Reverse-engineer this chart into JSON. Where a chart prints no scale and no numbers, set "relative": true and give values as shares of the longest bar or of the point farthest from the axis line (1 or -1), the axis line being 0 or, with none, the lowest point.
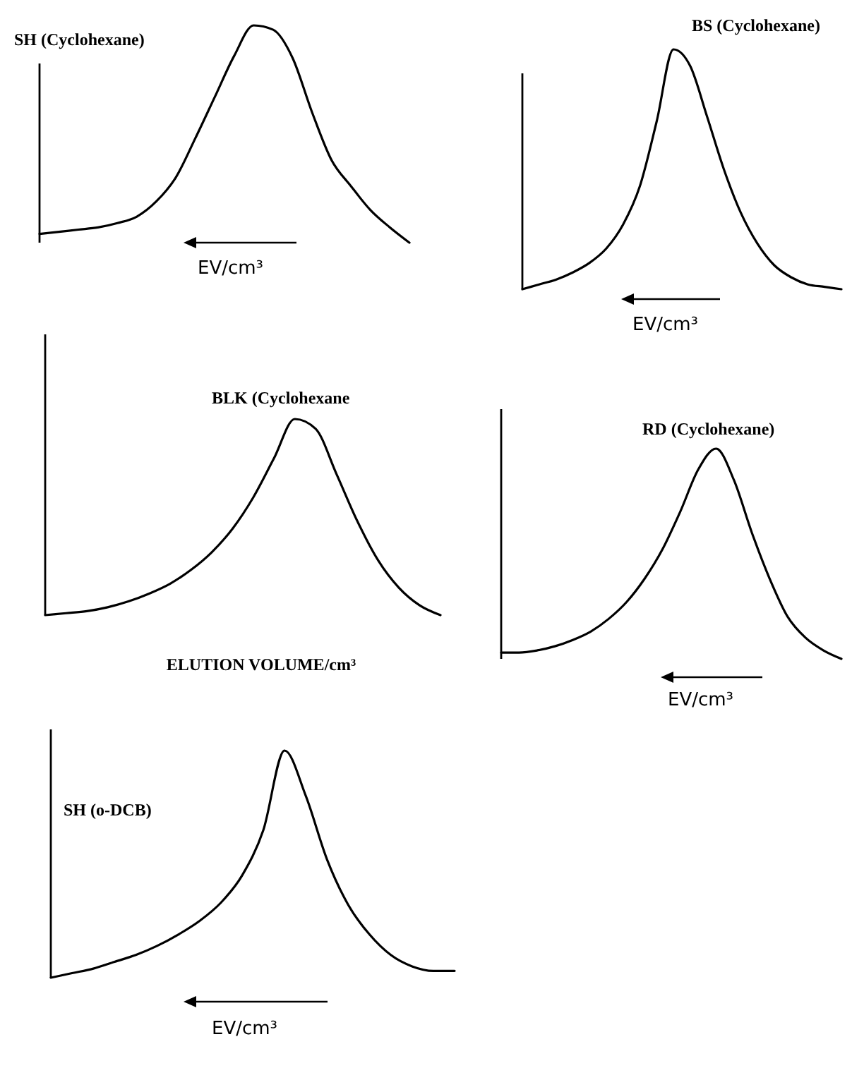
{
  "chart_data": [
    {
      "type": "line",
      "relative": true,
      "title": "SH (Cyclohexane)",
      "annotations": [
        "EV/cm³"
      ],
      "color": "#000000",
      "categories": [
        null,
        null,
        null,
        null,
        null,
        null,
        null,
        null,
        null,
        null,
        null,
        null,
        null,
        null,
        null,
        null,
        null,
        null,
        null,
        null
      ],
      "values": [
        0.04,
        0.05,
        0.06,
        0.07,
        0.09,
        0.12,
        0.19,
        0.3,
        0.48,
        0.67,
        0.86,
        1.0,
        0.98,
        0.85,
        0.6,
        0.38,
        0.26,
        0.15,
        0.07,
        0
      ]
    },
    {
      "type": "line",
      "relative": true,
      "title": "BS (Cyclohexane)",
      "annotations": [
        "EV/cm³"
      ],
      "color": "#000000",
      "categories": [
        null,
        null,
        null,
        null,
        null,
        null,
        null,
        null,
        null,
        null,
        null,
        null,
        null,
        null,
        null,
        null,
        null,
        null,
        null,
        null
      ],
      "values": [
        0,
        0.02,
        0.04,
        0.07,
        0.11,
        0.17,
        0.27,
        0.43,
        0.7,
        1.0,
        0.93,
        0.72,
        0.5,
        0.32,
        0.19,
        0.1,
        0.05,
        0.02,
        0.01,
        0
      ]
    },
    {
      "type": "line",
      "relative": true,
      "title": "BLK (Cyclohexane",
      "xlabel": "ELUTION VOLUME/cm³",
      "color": "#000000",
      "categories": [
        null,
        null,
        null,
        null,
        null,
        null,
        null,
        null,
        null,
        null,
        null,
        null,
        null,
        null,
        null,
        null,
        null,
        null,
        null,
        null
      ],
      "values": [
        0,
        0.01,
        0.02,
        0.04,
        0.07,
        0.11,
        0.16,
        0.23,
        0.32,
        0.44,
        0.6,
        0.8,
        1.0,
        0.95,
        0.72,
        0.48,
        0.28,
        0.14,
        0.05,
        0
      ]
    },
    {
      "type": "line",
      "relative": true,
      "title": "RD (Cyclohexane)",
      "annotations": [
        "EV/cm³"
      ],
      "color": "#000000",
      "categories": [
        null,
        null,
        null,
        null,
        null,
        null,
        null,
        null,
        null,
        null,
        null,
        null,
        null,
        null,
        null,
        null,
        null,
        null,
        null,
        null
      ],
      "values": [
        0.03,
        0.03,
        0.04,
        0.06,
        0.09,
        0.13,
        0.19,
        0.27,
        0.38,
        0.52,
        0.7,
        0.9,
        1.0,
        0.85,
        0.6,
        0.38,
        0.2,
        0.1,
        0.04,
        0
      ]
    },
    {
      "type": "line",
      "relative": true,
      "title": "SH (o-DCB)",
      "annotations": [
        "EV/cm³"
      ],
      "color": "#000000",
      "categories": [
        null,
        null,
        null,
        null,
        null,
        null,
        null,
        null,
        null,
        null,
        null,
        null,
        null,
        null,
        null,
        null,
        null,
        null,
        null,
        null
      ],
      "values": [
        0,
        0.02,
        0.04,
        0.07,
        0.1,
        0.14,
        0.19,
        0.25,
        0.33,
        0.45,
        0.65,
        1.0,
        0.8,
        0.52,
        0.32,
        0.19,
        0.1,
        0.05,
        0.03,
        0.03
      ]
    }
  ]
}
